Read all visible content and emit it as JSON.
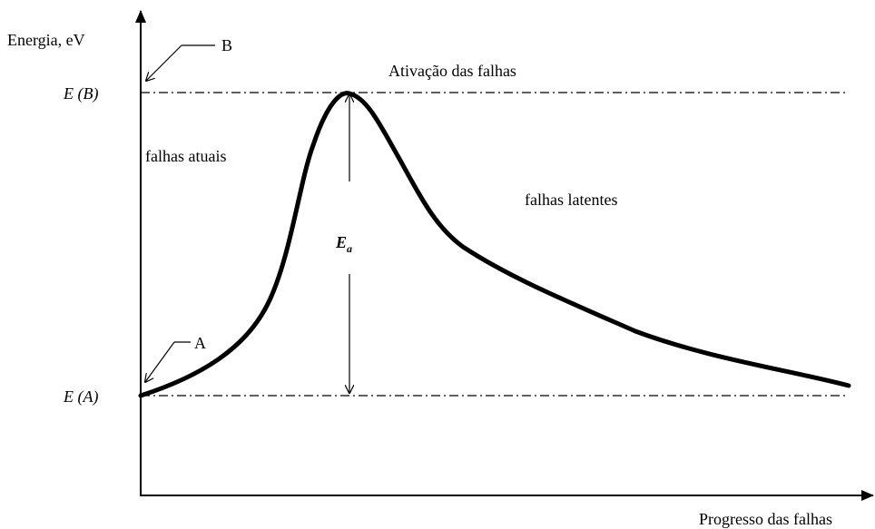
{
  "y_axis_label": "Energia, eV",
  "x_axis_label": "Progresso das falhas",
  "levels": {
    "high": "E (B)",
    "low": "E (A)"
  },
  "points": {
    "b": "B",
    "a": "A"
  },
  "regions": {
    "activation": "Ativação das falhas",
    "current": "falhas atuais",
    "latent": "falhas latentes"
  },
  "activation_energy": {
    "main": "E",
    "sub": "a"
  }
}
